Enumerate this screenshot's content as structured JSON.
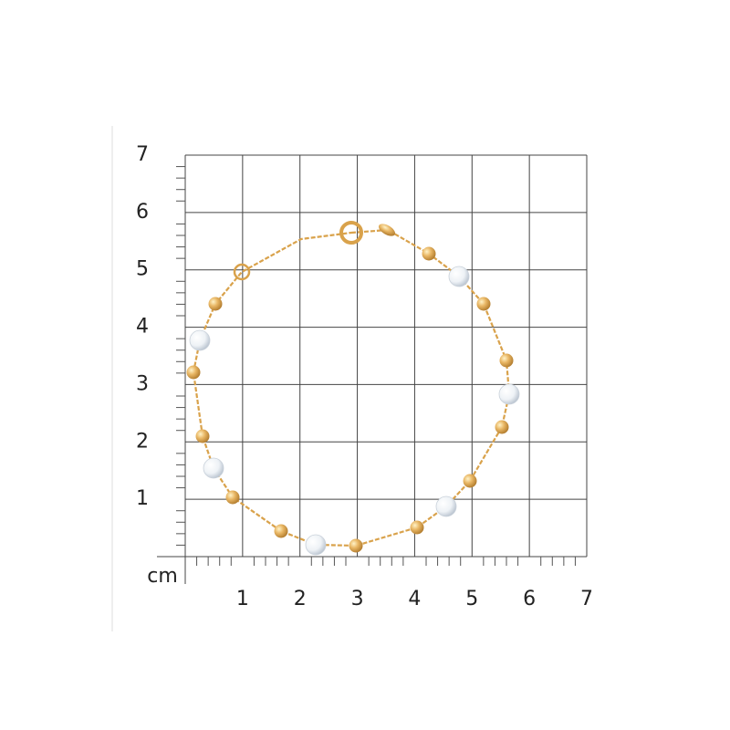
{
  "scale": {
    "unit": "cm",
    "y_labels": [
      7,
      6,
      5,
      4,
      3,
      2,
      1
    ],
    "x_labels": [
      1,
      2,
      3,
      4,
      5,
      6,
      7
    ]
  }
}
